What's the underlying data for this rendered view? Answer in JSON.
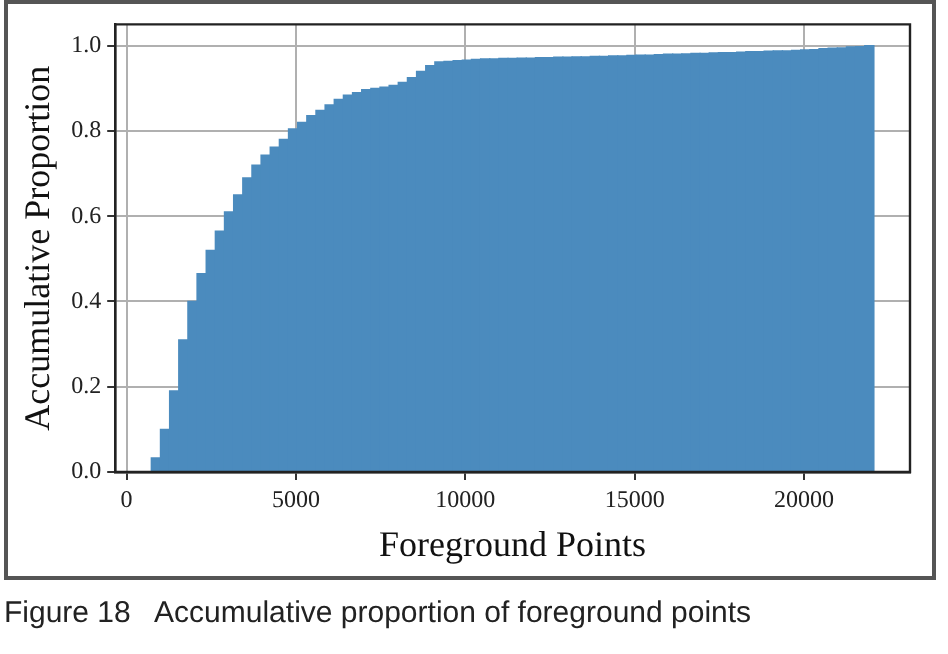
{
  "chart_data": {
    "type": "histogram",
    "xlabel": "Foreground Points",
    "ylabel": "Accumulative Proportion",
    "annotations": [
      "Figure 18   Accumulative proportion of foreground points"
    ],
    "bins": [
      730,
      1000,
      1270,
      1540,
      1810,
      2080,
      2350,
      2620,
      2890,
      3160,
      3430,
      3700,
      3970,
      4240,
      4510,
      4780,
      5050,
      5320,
      5590,
      5860,
      6130,
      6400,
      6670,
      6940,
      7210,
      7480,
      7750,
      8020,
      8290,
      8560,
      8830,
      9100,
      9370,
      9640,
      9910,
      10180,
      10450,
      10720,
      10990,
      11260,
      11530,
      11800,
      12070,
      12340,
      12610,
      12880,
      13150,
      13420,
      13690,
      13960,
      14230,
      14500,
      14770,
      15040,
      15310,
      15580,
      15850,
      16120,
      16390,
      16660,
      16930,
      17200,
      17470,
      17740,
      18010,
      18280,
      18550,
      18820,
      19090,
      19360,
      19630,
      19900,
      20170,
      20440,
      20710,
      20980,
      21250,
      21520,
      21790,
      22060
    ],
    "values": [
      0.033,
      0.1,
      0.19,
      0.31,
      0.4,
      0.465,
      0.52,
      0.565,
      0.61,
      0.65,
      0.69,
      0.72,
      0.743,
      0.762,
      0.78,
      0.805,
      0.82,
      0.836,
      0.848,
      0.861,
      0.874,
      0.884,
      0.89,
      0.897,
      0.9,
      0.903,
      0.907,
      0.914,
      0.925,
      0.94,
      0.953,
      0.962,
      0.963,
      0.965,
      0.966,
      0.968,
      0.969,
      0.969,
      0.97,
      0.97,
      0.971,
      0.971,
      0.972,
      0.972,
      0.973,
      0.973,
      0.974,
      0.974,
      0.975,
      0.975,
      0.976,
      0.976,
      0.977,
      0.978,
      0.978,
      0.979,
      0.98,
      0.98,
      0.981,
      0.982,
      0.982,
      0.983,
      0.984,
      0.984,
      0.985,
      0.986,
      0.986,
      0.987,
      0.988,
      0.988,
      0.989,
      0.99,
      0.991,
      0.993,
      0.994,
      0.995,
      0.997,
      0.998,
      1.0
    ],
    "color": "#4b8bbe",
    "xlim": [
      -336,
      23126
    ],
    "ylim": [
      0,
      1.05
    ],
    "xticks": [
      0,
      5000,
      10000,
      15000,
      20000
    ],
    "yticks": [
      {
        "value": 0,
        "label": "0.0"
      },
      {
        "value": 0.2,
        "label": "0.2"
      },
      {
        "value": 0.4,
        "label": "0.4"
      },
      {
        "value": 0.6,
        "label": "0.6"
      },
      {
        "value": 0.8,
        "label": "0.8"
      },
      {
        "value": 1.0,
        "label": "1.0"
      }
    ],
    "grid": true
  }
}
